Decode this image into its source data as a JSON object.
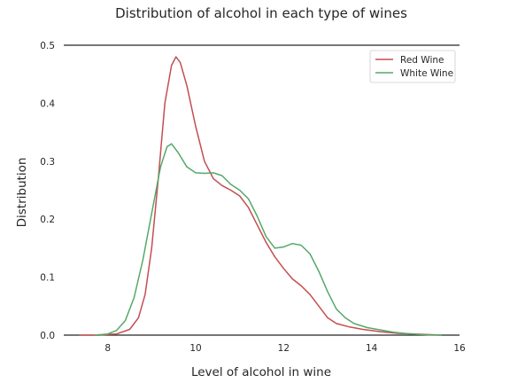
{
  "chart_data": {
    "type": "line",
    "title": "Distribution of alcohol in each type of wines",
    "xlabel": "Level of alcohol in wine",
    "ylabel": "Distribution",
    "xlim": [
      7,
      16
    ],
    "ylim": [
      0,
      0.5
    ],
    "x_ticks": [
      8,
      10,
      12,
      14,
      16
    ],
    "y_ticks": [
      0.0,
      0.1,
      0.2,
      0.3,
      0.4,
      0.5
    ],
    "grid": false,
    "legend_position": "top-right",
    "series": [
      {
        "name": "Red Wine",
        "color": "#c44e52",
        "points": [
          [
            7.35,
            0.0
          ],
          [
            7.8,
            0.0
          ],
          [
            8.2,
            0.002
          ],
          [
            8.5,
            0.01
          ],
          [
            8.7,
            0.03
          ],
          [
            8.85,
            0.07
          ],
          [
            9.0,
            0.15
          ],
          [
            9.15,
            0.27
          ],
          [
            9.3,
            0.4
          ],
          [
            9.45,
            0.465
          ],
          [
            9.55,
            0.48
          ],
          [
            9.65,
            0.47
          ],
          [
            9.8,
            0.43
          ],
          [
            10.0,
            0.36
          ],
          [
            10.2,
            0.3
          ],
          [
            10.4,
            0.27
          ],
          [
            10.6,
            0.258
          ],
          [
            10.8,
            0.25
          ],
          [
            11.0,
            0.24
          ],
          [
            11.2,
            0.22
          ],
          [
            11.4,
            0.19
          ],
          [
            11.6,
            0.16
          ],
          [
            11.8,
            0.135
          ],
          [
            12.0,
            0.115
          ],
          [
            12.2,
            0.097
          ],
          [
            12.4,
            0.085
          ],
          [
            12.6,
            0.07
          ],
          [
            12.8,
            0.05
          ],
          [
            13.0,
            0.03
          ],
          [
            13.2,
            0.02
          ],
          [
            13.5,
            0.014
          ],
          [
            13.8,
            0.01
          ],
          [
            14.2,
            0.006
          ],
          [
            14.6,
            0.003
          ],
          [
            15.0,
            0.002
          ],
          [
            15.6,
            0.0
          ]
        ]
      },
      {
        "name": "White Wine",
        "color": "#55a868",
        "points": [
          [
            7.7,
            0.0
          ],
          [
            8.0,
            0.002
          ],
          [
            8.2,
            0.008
          ],
          [
            8.4,
            0.025
          ],
          [
            8.6,
            0.065
          ],
          [
            8.8,
            0.13
          ],
          [
            9.0,
            0.21
          ],
          [
            9.2,
            0.29
          ],
          [
            9.35,
            0.325
          ],
          [
            9.45,
            0.33
          ],
          [
            9.6,
            0.315
          ],
          [
            9.8,
            0.29
          ],
          [
            10.0,
            0.28
          ],
          [
            10.2,
            0.279
          ],
          [
            10.4,
            0.28
          ],
          [
            10.6,
            0.275
          ],
          [
            10.8,
            0.26
          ],
          [
            11.0,
            0.25
          ],
          [
            11.2,
            0.235
          ],
          [
            11.4,
            0.205
          ],
          [
            11.6,
            0.17
          ],
          [
            11.8,
            0.15
          ],
          [
            12.0,
            0.152
          ],
          [
            12.2,
            0.158
          ],
          [
            12.4,
            0.155
          ],
          [
            12.6,
            0.14
          ],
          [
            12.8,
            0.11
          ],
          [
            13.0,
            0.075
          ],
          [
            13.2,
            0.045
          ],
          [
            13.4,
            0.03
          ],
          [
            13.6,
            0.02
          ],
          [
            13.9,
            0.013
          ],
          [
            14.2,
            0.009
          ],
          [
            14.5,
            0.005
          ],
          [
            14.9,
            0.002
          ],
          [
            15.3,
            0.0005
          ],
          [
            15.6,
            0.0
          ]
        ]
      }
    ]
  }
}
